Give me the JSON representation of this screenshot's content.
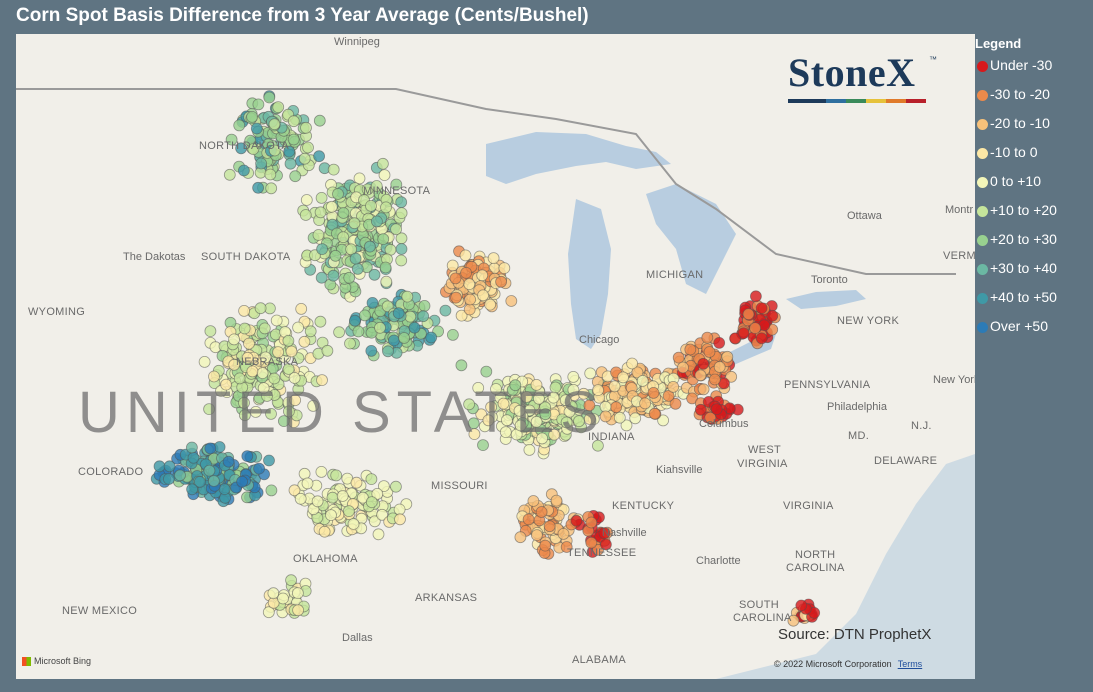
{
  "title": "Corn Spot Basis Difference from 3 Year Average (Cents/Bushel)",
  "source": "Source: DTN ProphetX",
  "copyright": "© 2022 Microsoft Corporation",
  "terms": "Terms",
  "bing": "Microsoft Bing",
  "logo_text": "StoneX",
  "logo_tm": "™",
  "legend": {
    "title": "Legend",
    "items": [
      {
        "label": "Under -30",
        "color": "#d7191c"
      },
      {
        "label": "-30 to -20",
        "color": "#ec8a4b"
      },
      {
        "label": "-20 to -10",
        "color": "#f7c17a"
      },
      {
        "label": "-10 to 0",
        "color": "#fde8a6"
      },
      {
        "label": "0 to +10",
        "color": "#f3f6b9"
      },
      {
        "label": "+10 to +20",
        "color": "#c5e59b"
      },
      {
        "label": "+20 to +30",
        "color": "#98d18f"
      },
      {
        "label": "+30 to +40",
        "color": "#6bb8a3"
      },
      {
        "label": "+40 to +50",
        "color": "#3f99a6"
      },
      {
        "label": "Over +50",
        "color": "#2c7bb6"
      }
    ]
  },
  "map_labels": {
    "winnipeg": "Winnipeg",
    "north_dakota": "NORTH DAKOTA",
    "minnesota": "MINNESOTA",
    "the_dakotas": "The Dakotas",
    "south_dakota": "SOUTH DAKOTA",
    "wyoming": "WYOMING",
    "nebraska": "NEBRASKA",
    "united_states": "UNITED STATES",
    "colorado": "COLORADO",
    "missouri": "MISSOURI",
    "oklahoma": "OKLAHOMA",
    "arkansas": "ARKANSAS",
    "new_mexico": "NEW MEXICO",
    "dallas": "Dallas",
    "alabama": "ALABAMA",
    "tennessee": "TENNESSEE",
    "nashville": "Nashville",
    "kentucky": "KENTUCKY",
    "virginia": "VIRGINIA",
    "west_virginia_1": "WEST",
    "west_virginia_2": "VIRGINIA",
    "north_carolina_1": "NORTH",
    "north_carolina_2": "CAROLINA",
    "south_carolina_1": "SOUTH",
    "south_carolina_2": "CAROLINA",
    "charlotte": "Charlotte",
    "kiahsville": "Kiahsville",
    "columbus": "Columbus",
    "chicago": "Chicago",
    "michigan": "MICHIGAN",
    "indiana": "INDIANA",
    "pennsylvania": "PENNSYLVANIA",
    "philadelphia": "Philadelphia",
    "new_york_state": "NEW YORK",
    "new_york_city": "New York",
    "nj": "N.J.",
    "md": "MD.",
    "delaware": "DELAWARE",
    "ottawa": "Ottawa",
    "montreal": "Montr",
    "vermont": "VERMO",
    "toronto": "Toronto"
  }
}
